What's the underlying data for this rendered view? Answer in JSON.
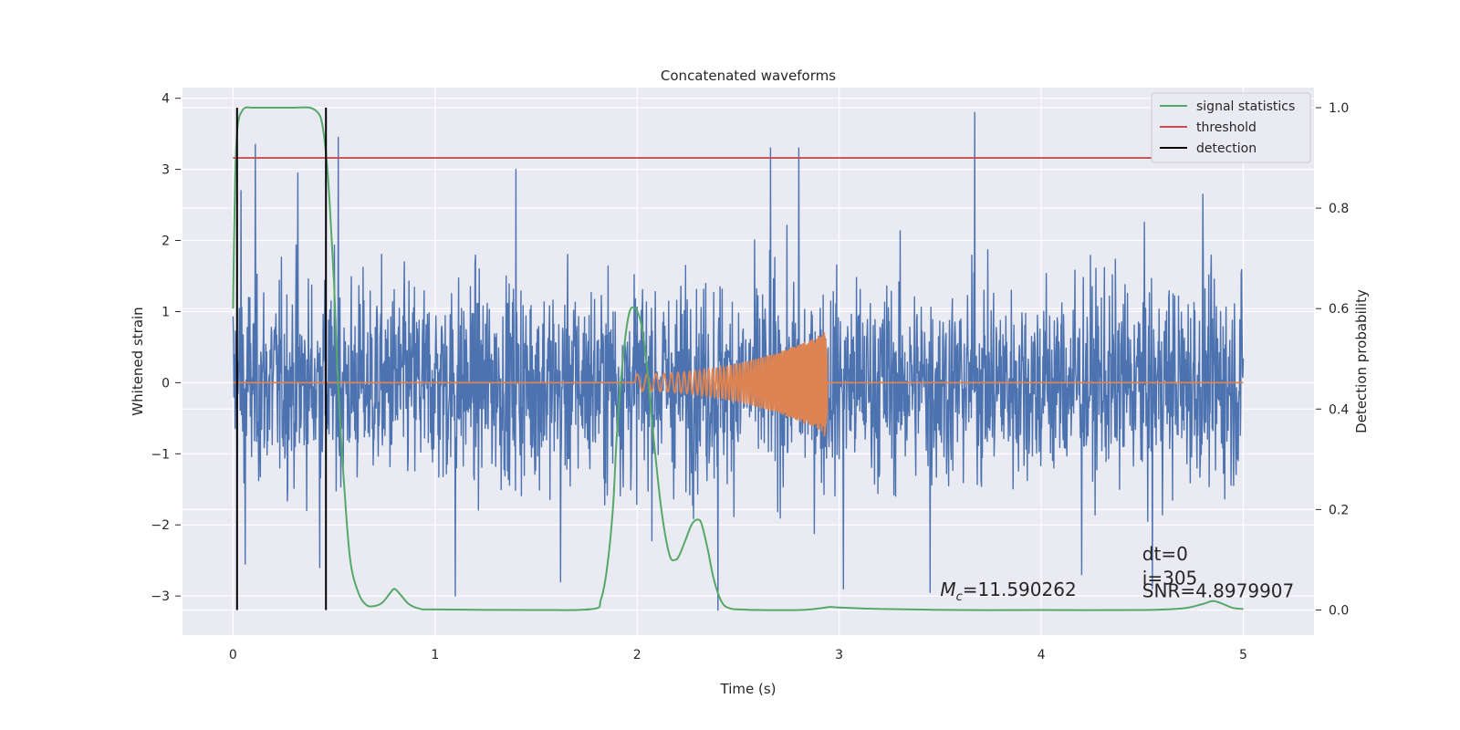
{
  "chart_data": {
    "type": "line",
    "title": "Concatenated waveforms",
    "xlabel": "Time (s)",
    "ylabel": "Whitened strain",
    "ylabel_right": "Detection probability",
    "xlim": [
      -0.25,
      5.35
    ],
    "ylim": [
      -3.55,
      4.15
    ],
    "ylim_right": [
      -0.05,
      1.04
    ],
    "x_ticks": [
      0,
      1,
      2,
      3,
      4,
      5
    ],
    "x_tick_labels": [
      "0",
      "1",
      "2",
      "3",
      "4",
      "5"
    ],
    "y_ticks": [
      -3,
      -2,
      -1,
      0,
      1,
      2,
      3,
      4
    ],
    "y_tick_labels": [
      "−3",
      "−2",
      "−1",
      "0",
      "1",
      "2",
      "3",
      "4"
    ],
    "y_right_ticks": [
      0.0,
      0.2,
      0.4,
      0.6,
      0.8,
      1.0
    ],
    "y_right_tick_labels": [
      "0.0",
      "0.2",
      "0.4",
      "0.6",
      "0.8",
      "1.0"
    ],
    "grid": true,
    "legend_position": "top-right",
    "series": [
      {
        "name": "",
        "axis": "left",
        "kind": "noise",
        "color": "#4c72b0",
        "x_range": [
          0,
          5
        ],
        "typical_abs": 1.6,
        "spikes": [
          {
            "x": 0.04,
            "y": 2.7
          },
          {
            "x": 0.11,
            "y": 3.35
          },
          {
            "x": 0.52,
            "y": 3.45
          },
          {
            "x": 0.32,
            "y": 2.95
          },
          {
            "x": 1.4,
            "y": 3.0
          },
          {
            "x": 2.66,
            "y": 3.3
          },
          {
            "x": 2.8,
            "y": 3.3
          },
          {
            "x": 3.67,
            "y": 3.8
          },
          {
            "x": 0.43,
            "y": -2.6
          },
          {
            "x": 1.1,
            "y": -3.0
          },
          {
            "x": 2.4,
            "y": -3.2
          },
          {
            "x": 3.02,
            "y": -2.9
          },
          {
            "x": 3.45,
            "y": -2.95
          },
          {
            "x": 4.2,
            "y": -2.7
          },
          {
            "x": 4.55,
            "y": -2.9
          },
          {
            "x": 0.06,
            "y": -2.55
          },
          {
            "x": 1.62,
            "y": -2.8
          },
          {
            "x": 4.8,
            "y": 2.65
          }
        ]
      },
      {
        "name": "",
        "axis": "left",
        "kind": "chirp",
        "color": "#dd8452",
        "x_range": [
          0,
          5
        ],
        "chirp_start": 1.99,
        "chirp_end": 2.94,
        "amp_start": 0.12,
        "amp_end": 0.72,
        "amp_min_end": -0.8
      },
      {
        "name": "signal statistics",
        "axis": "right",
        "kind": "line",
        "color": "#55a868",
        "x": [
          0.0,
          0.01,
          0.02,
          0.03,
          0.04,
          0.06,
          0.1,
          0.2,
          0.3,
          0.38,
          0.42,
          0.44,
          0.46,
          0.48,
          0.5,
          0.52,
          0.55,
          0.58,
          0.62,
          0.66,
          0.7,
          0.74,
          0.78,
          0.8,
          0.83,
          0.87,
          0.92,
          1.0,
          1.5,
          1.78,
          1.82,
          1.85,
          1.88,
          1.9,
          1.93,
          1.96,
          1.99,
          2.02,
          2.05,
          2.08,
          2.12,
          2.16,
          2.19,
          2.21,
          2.24,
          2.27,
          2.3,
          2.32,
          2.35,
          2.38,
          2.42,
          2.46,
          2.52,
          2.6,
          2.8,
          2.9,
          2.95,
          3.0,
          3.2,
          3.6,
          4.0,
          4.5,
          4.7,
          4.8,
          4.85,
          4.9,
          4.95,
          5.0
        ],
        "y": [
          0.6,
          0.85,
          0.95,
          0.98,
          0.99,
          1.0,
          1.0,
          1.0,
          1.0,
          1.0,
          0.99,
          0.97,
          0.91,
          0.8,
          0.65,
          0.45,
          0.25,
          0.1,
          0.035,
          0.01,
          0.008,
          0.015,
          0.035,
          0.042,
          0.03,
          0.012,
          0.003,
          0.001,
          0.0,
          0.002,
          0.02,
          0.08,
          0.2,
          0.35,
          0.5,
          0.59,
          0.6,
          0.57,
          0.48,
          0.35,
          0.2,
          0.11,
          0.1,
          0.11,
          0.14,
          0.17,
          0.18,
          0.17,
          0.12,
          0.06,
          0.015,
          0.003,
          0.001,
          0.0,
          0.0,
          0.003,
          0.006,
          0.005,
          0.002,
          0.0,
          0.0,
          0.0,
          0.003,
          0.012,
          0.018,
          0.012,
          0.004,
          0.002
        ]
      },
      {
        "name": "threshold",
        "axis": "right",
        "kind": "hline",
        "color": "#c44e52",
        "x": [
          0.0,
          5.1
        ],
        "y": [
          0.9,
          0.9
        ]
      },
      {
        "name": "detection",
        "axis": "right",
        "kind": "vlines",
        "color": "#000000",
        "x": [
          0.02,
          0.46
        ],
        "y": [
          0.0,
          1.0
        ]
      }
    ],
    "annotations": [
      {
        "text_prefix": "M",
        "text_sub": "c",
        "text": "=11.590262",
        "x": 3.5,
        "y": -3.0
      },
      {
        "text": "dt=0",
        "x": 4.5,
        "y": -2.5
      },
      {
        "text": "i=305",
        "x": 4.5,
        "y": -2.84
      },
      {
        "text": "SNR=4.8979907",
        "x": 4.5,
        "y": -3.02
      }
    ]
  }
}
